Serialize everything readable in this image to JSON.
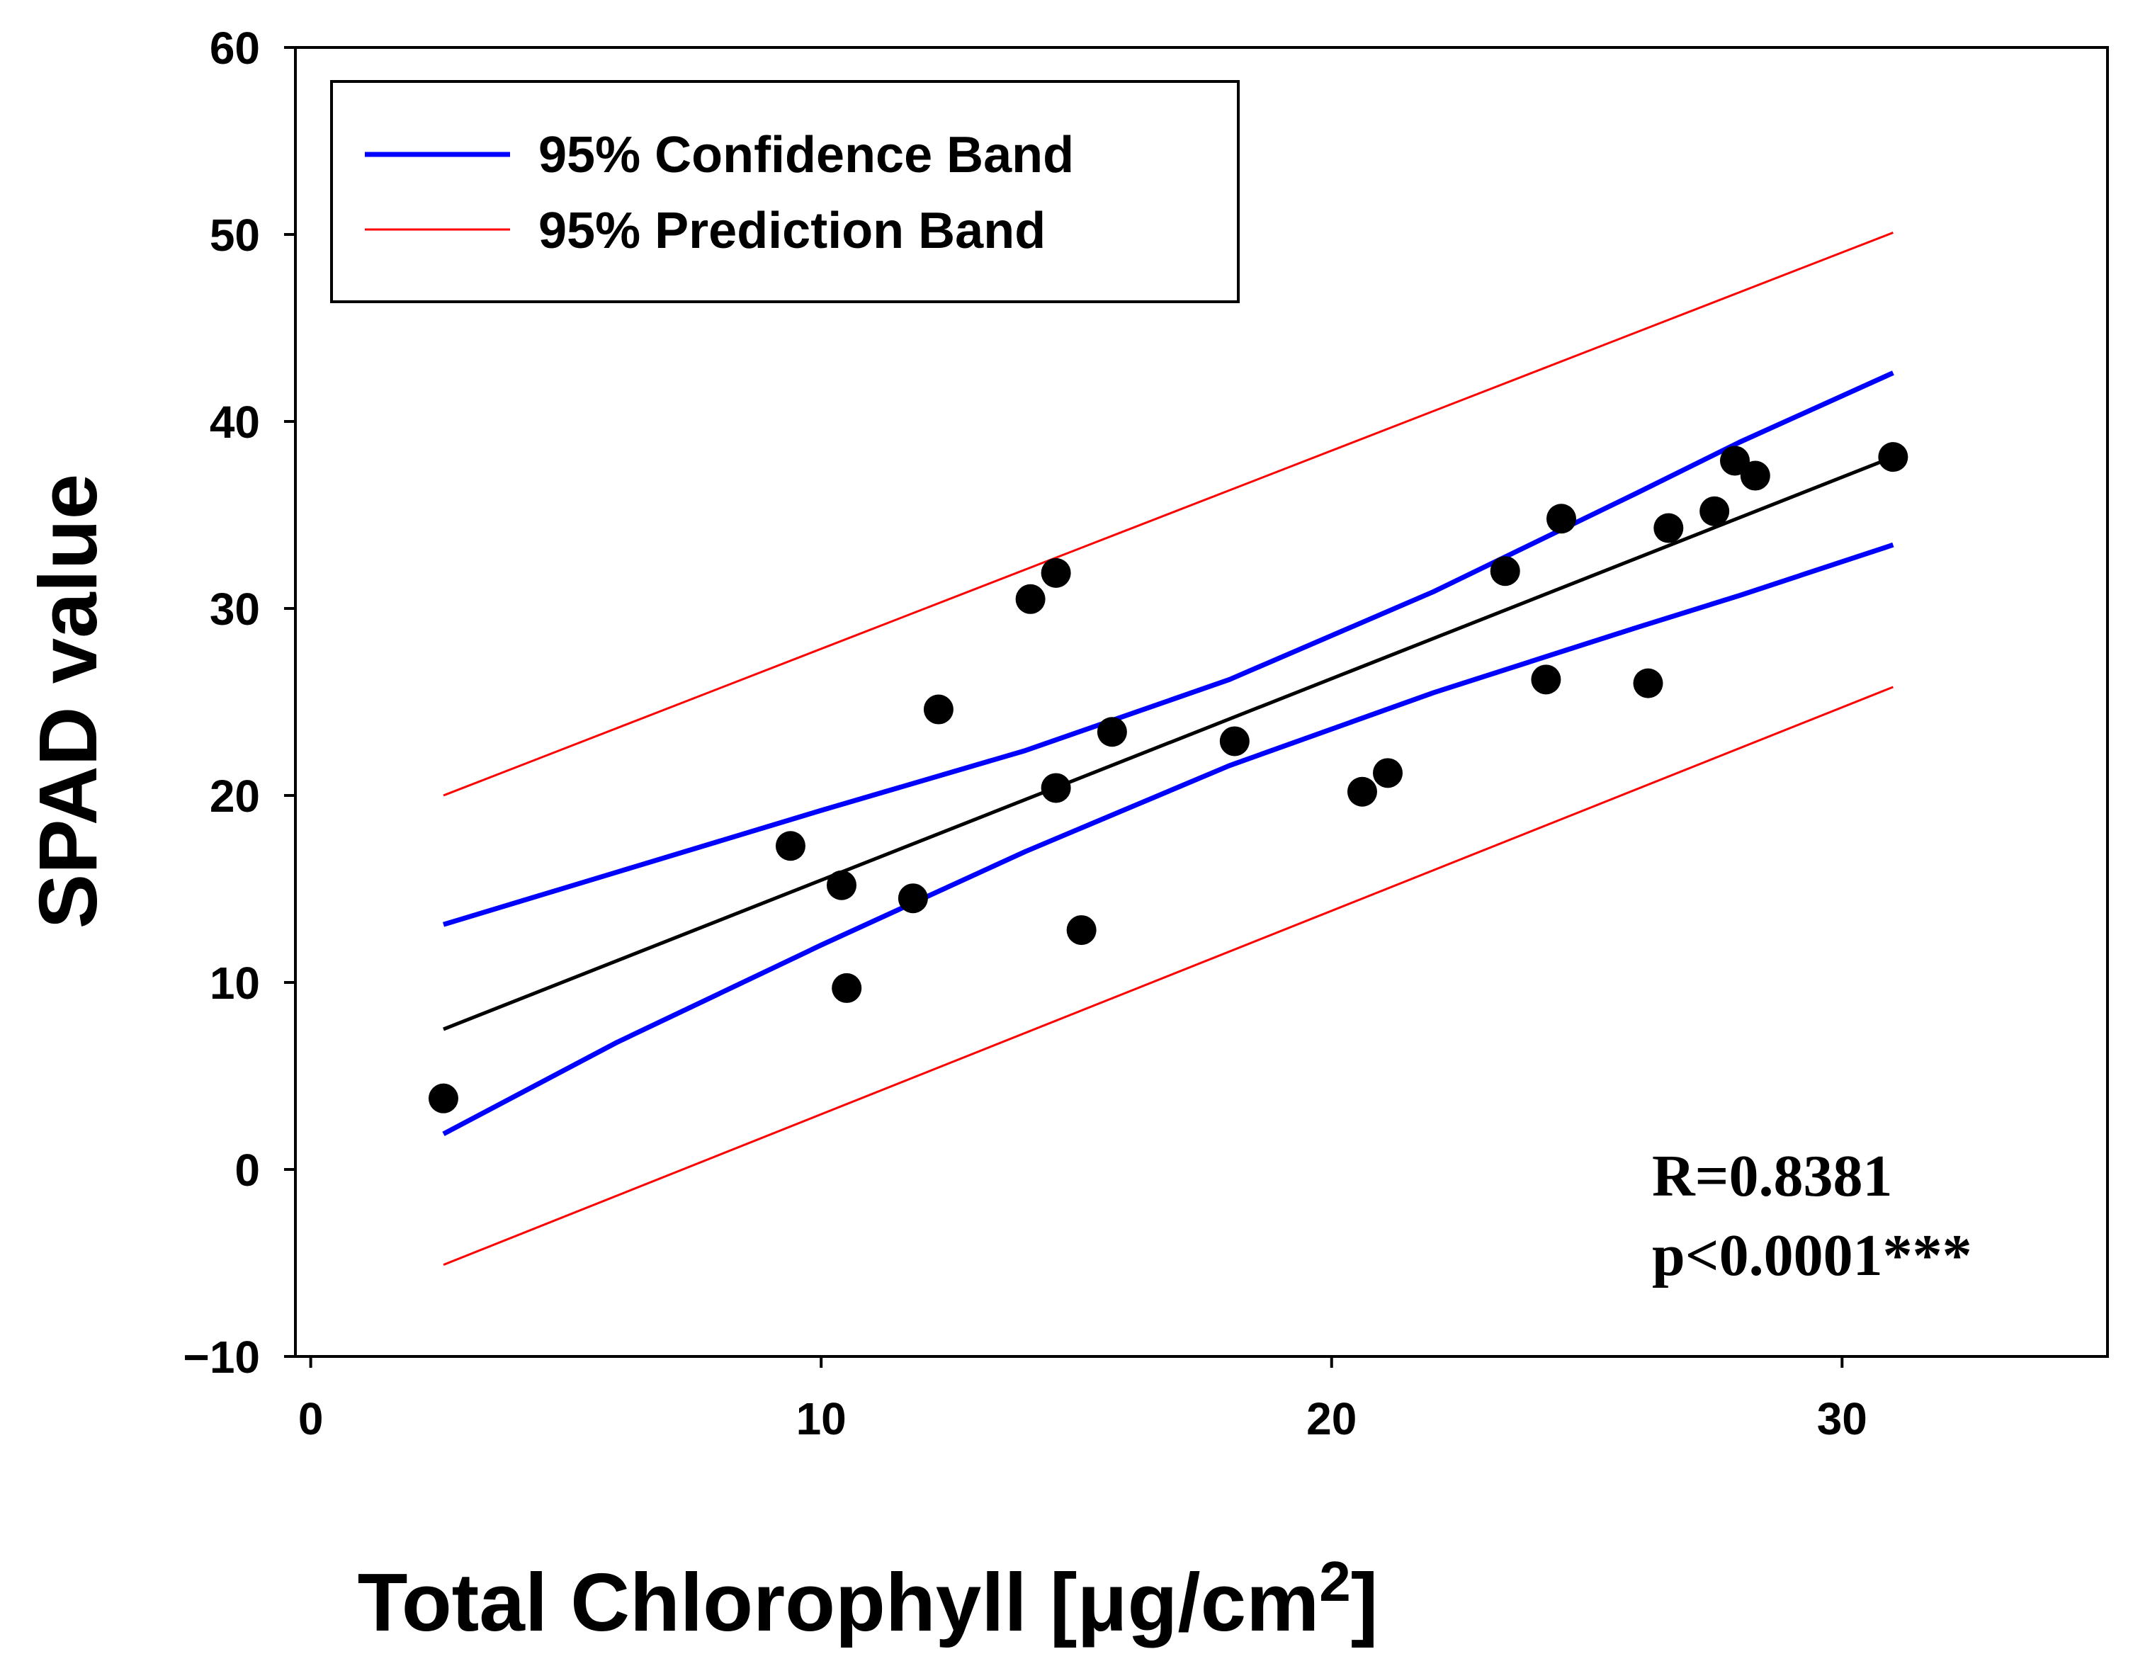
{
  "chart_data": {
    "type": "scatter",
    "xlabel": "Total Chlorophyll [μg/cm",
    "xlabel_superscript": "2",
    "xlabel_close": "]",
    "ylabel": "SPAD value",
    "xlim": [
      -0.3,
      35.2
    ],
    "ylim": [
      -10,
      60
    ],
    "xticks": [
      0,
      10,
      20,
      30
    ],
    "yticks": [
      -10,
      0,
      10,
      20,
      30,
      40,
      50,
      60
    ],
    "ytick_labels": [
      "−10",
      "0",
      "10",
      "20",
      "30",
      "40",
      "50",
      "60"
    ],
    "grid": false,
    "legend": {
      "position": "top-left",
      "entries": [
        {
          "label": "95% Confidence Band",
          "color": "#0000ff"
        },
        {
          "label": "95% Prediction Band",
          "color": "#ff0000"
        }
      ]
    },
    "annotations": {
      "r": "R=0.8381",
      "p": "p<0.0001***"
    },
    "colors": {
      "points": "#000000",
      "regression": "#000000",
      "confidence": "#0000ff",
      "prediction": "#ff0000"
    },
    "points": [
      [
        2.6,
        3.8
      ],
      [
        9.4,
        17.3
      ],
      [
        10.4,
        15.2
      ],
      [
        10.5,
        9.7
      ],
      [
        11.8,
        14.5
      ],
      [
        12.3,
        24.6
      ],
      [
        14.1,
        30.5
      ],
      [
        14.6,
        31.9
      ],
      [
        14.6,
        20.4
      ],
      [
        15.1,
        12.8
      ],
      [
        15.7,
        23.4
      ],
      [
        18.1,
        22.9
      ],
      [
        20.6,
        20.2
      ],
      [
        21.1,
        21.2
      ],
      [
        23.4,
        32.0
      ],
      [
        24.2,
        26.2
      ],
      [
        24.5,
        34.8
      ],
      [
        26.2,
        26.0
      ],
      [
        26.6,
        34.3
      ],
      [
        27.5,
        35.2
      ],
      [
        27.9,
        37.9
      ],
      [
        28.3,
        37.1
      ],
      [
        31.0,
        38.1
      ]
    ],
    "regression": {
      "x": [
        2.6,
        31.0
      ],
      "y": [
        7.5,
        38.1
      ]
    },
    "confidence_upper": {
      "x": [
        2.6,
        6,
        10,
        14,
        18,
        22,
        26,
        28,
        31.0
      ],
      "y": [
        13.1,
        15.9,
        19.2,
        22.4,
        26.2,
        30.9,
        36.2,
        38.9,
        42.6
      ]
    },
    "confidence_lower": {
      "x": [
        2.6,
        6,
        10,
        14,
        18,
        22,
        26,
        28,
        31.0
      ],
      "y": [
        1.9,
        6.8,
        12.0,
        17.0,
        21.6,
        25.5,
        29.0,
        30.7,
        33.4
      ]
    },
    "prediction_upper": {
      "x": [
        2.6,
        31.0
      ],
      "y": [
        20.0,
        50.1
      ]
    },
    "prediction_lower": {
      "x": [
        2.6,
        31.0
      ],
      "y": [
        -5.1,
        25.8
      ]
    }
  }
}
